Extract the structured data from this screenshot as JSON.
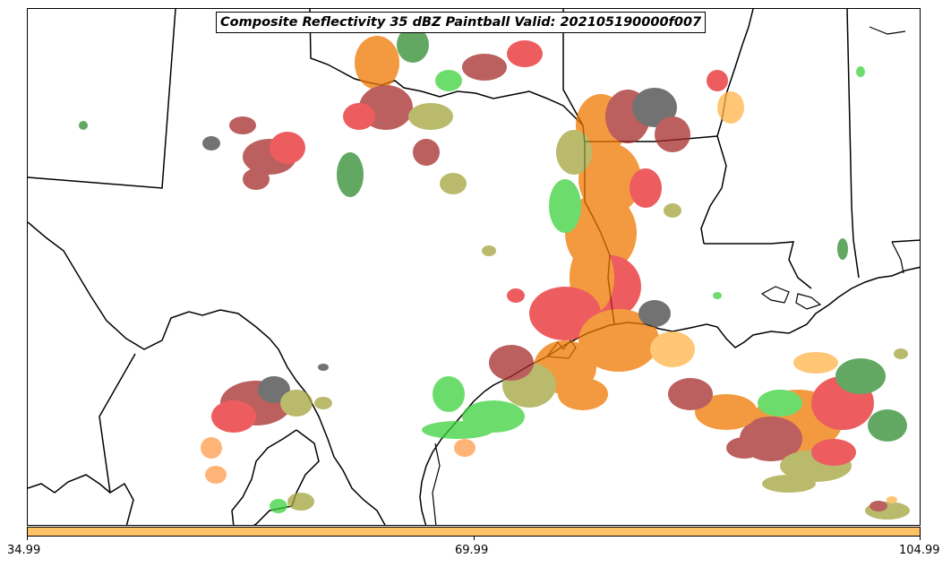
{
  "title": "Composite Reflectivity 35 dBZ Paintball Valid: 202105190000f007",
  "colorbar": {
    "color": "#ffc264",
    "ticks": [
      "34.99",
      "69.99",
      "104.99"
    ]
  },
  "colors": {
    "orange": "#f07800",
    "light_orange": "#ff9b4a",
    "gold": "#ffb347",
    "red": "#e8282b",
    "dark_red": "#a52a2a",
    "green": "#3cd23c",
    "dark_green": "#2e8b2e",
    "olive": "#a4a43c",
    "dark_gray": "#444444",
    "boundaries": "#000000"
  }
}
